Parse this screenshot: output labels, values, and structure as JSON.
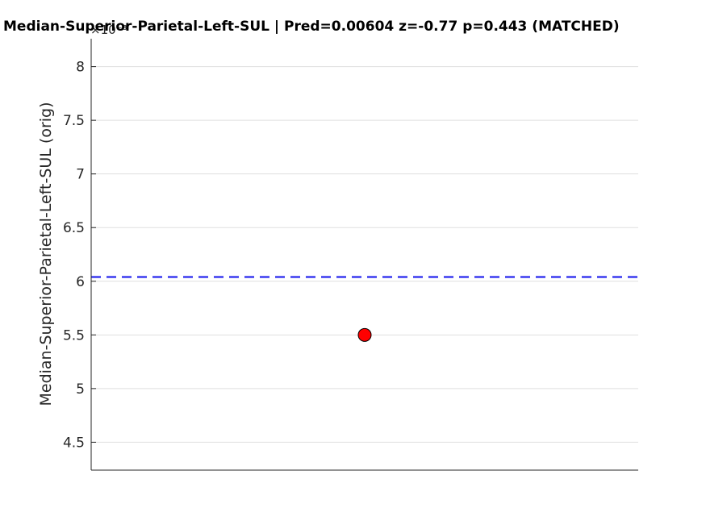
{
  "chart_data": {
    "type": "scatter",
    "title": "Median-Superior-Parietal-Left-SUL  |  Pred=0.00604  z=-0.77  p=0.443 (MATCHED)",
    "ylabel": "Median-Superior-Parietal-Left-SUL (orig)",
    "xlabel": "",
    "y_exponent_label": "×10⁻³",
    "ylim": [
      0.00424,
      0.00826
    ],
    "xlim": [
      0,
      2
    ],
    "yticks": [
      0.0045,
      0.005,
      0.0055,
      0.006,
      0.0065,
      0.007,
      0.0075,
      0.008
    ],
    "ytick_labels": [
      "4.5",
      "5",
      "5.5",
      "6",
      "6.5",
      "7",
      "7.5",
      "8"
    ],
    "grid": true,
    "reference_line": {
      "y": 0.00604,
      "style": "dashed",
      "color": "#3b3bf0"
    },
    "points": [
      {
        "x": 1,
        "y": 0.0055,
        "color": "#ff0000"
      }
    ]
  }
}
